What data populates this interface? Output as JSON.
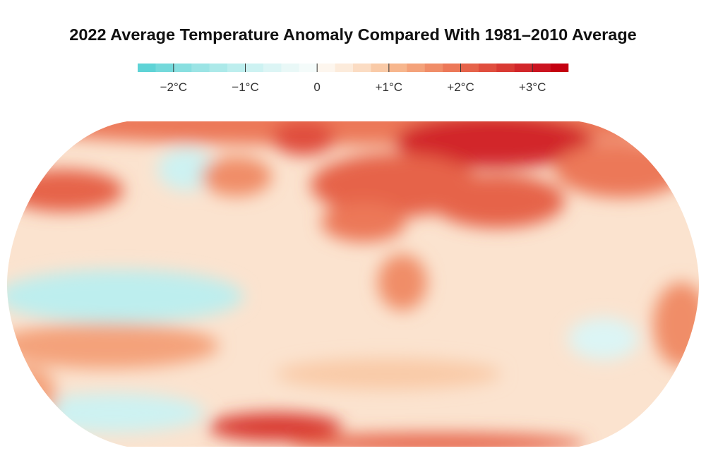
{
  "title": "2022 Average Temperature Anomaly Compared With 1981–2010 Average",
  "legend": {
    "lim": [
      -2.5,
      3.5
    ],
    "colors": [
      "#5ed3d6",
      "#74d9db",
      "#88dfe0",
      "#9be4e5",
      "#ace9e9",
      "#bdeeee",
      "#cdf2f2",
      "#dcf5f5",
      "#e9f8f7",
      "#f4fbfa",
      "#fdf6ee",
      "#fcebdb",
      "#fbdcc3",
      "#f9caa7",
      "#f7b68d",
      "#f4a27a",
      "#f08d68",
      "#ec7858",
      "#e6634a",
      "#e04e3e",
      "#d93a33",
      "#d2262a",
      "#cb1420",
      "#c40010"
    ],
    "ticks": [
      {
        "value": -2,
        "label": "−2°C"
      },
      {
        "value": -1,
        "label": "−1°C"
      },
      0,
      {
        "value": 1,
        "label": "+1°C"
      },
      {
        "value": 2,
        "label": "+2°C"
      },
      {
        "value": 3,
        "label": "+3°C"
      }
    ]
  }
}
